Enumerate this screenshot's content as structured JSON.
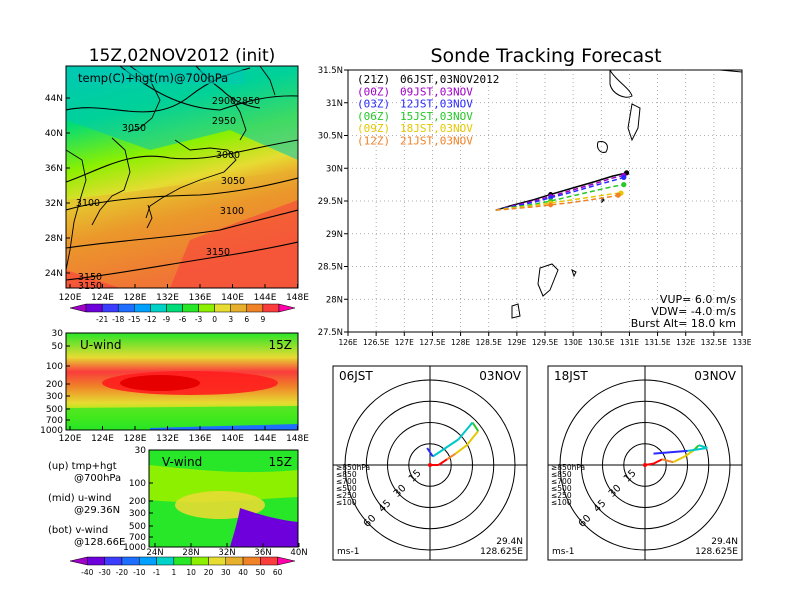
{
  "left_title": "15Z,02NOV2012 (init)",
  "map_label": "temp(C)+hgt(m)@700hPa",
  "map_lat_ticks": [
    "44N",
    "40N",
    "36N",
    "32N",
    "28N",
    "24N"
  ],
  "map_lon_ticks": [
    "120E",
    "124E",
    "128E",
    "132E",
    "136E",
    "140E",
    "144E",
    "148E"
  ],
  "contour_labels": [
    "2900",
    "2850",
    "3050",
    "2950",
    "3000",
    "3050",
    "3100",
    "3100",
    "3150",
    "3150",
    "3150"
  ],
  "temp_colorbar": {
    "labels": [
      "-21",
      "-18",
      "-15",
      "-12",
      "-9",
      "-6",
      "-3",
      "0",
      "3",
      "6",
      "9"
    ],
    "colors": [
      "#a000c8",
      "#6e00dc",
      "#3c3cff",
      "#1e6eff",
      "#00a0ff",
      "#00d2c8",
      "#00dc78",
      "#28e628",
      "#8cf000",
      "#e6dc32",
      "#e6af2d",
      "#f08228",
      "#fa3c3c",
      "#ff00aa"
    ]
  },
  "u_panel": {
    "title": "U-wind",
    "time": "15Z",
    "p_ticks": [
      "30",
      "50",
      "100",
      "200",
      "300",
      "500",
      "700",
      "1000"
    ],
    "lon_ticks": [
      "120E",
      "124E",
      "128E",
      "132E",
      "136E",
      "140E",
      "144E",
      "148E"
    ]
  },
  "v_panel": {
    "title": "V-wind",
    "time": "15Z",
    "p_ticks": [
      "30",
      "50",
      "100",
      "200",
      "300",
      "500",
      "700",
      "1000"
    ],
    "lat_ticks": [
      "24N",
      "28N",
      "32N",
      "36N",
      "40N"
    ]
  },
  "notes": {
    "up1": "(up) tmp+hgt",
    "up2": "@700hPa",
    "mid1": "(mid) u-wind",
    "mid2": "@29.36N",
    "bot1": "(bot) v-wind",
    "bot2": "@128.66E"
  },
  "wind_colorbar": {
    "labels": [
      "-40",
      "-30",
      "-20",
      "-10",
      "-1",
      "1",
      "10",
      "20",
      "30",
      "40",
      "50",
      "60"
    ],
    "colors": [
      "#a000c8",
      "#6e00dc",
      "#3c3cff",
      "#1e6eff",
      "#00a0ff",
      "#00d2c8",
      "#28e628",
      "#8cf000",
      "#e6dc32",
      "#e6af2d",
      "#f08228",
      "#fa3c3c",
      "#ff00aa"
    ]
  },
  "right_title": "Sonde Tracking Forecast",
  "tracking": {
    "lat_ticks": [
      "31.5N",
      "31N",
      "30.5N",
      "30N",
      "29.5N",
      "29N",
      "28.5N",
      "28N",
      "27.5N"
    ],
    "lon_ticks": [
      "126E",
      "126.5E",
      "127E",
      "127.5E",
      "128E",
      "128.5E",
      "129E",
      "129.5E",
      "130E",
      "130.5E",
      "131E",
      "131.5E",
      "132E",
      "132.5E",
      "133E"
    ],
    "legend": [
      {
        "code": "(21Z)",
        "time": "06JST,03NOV2012",
        "color": "#000000"
      },
      {
        "code": "(00Z)",
        "time": "09JST,03NOV",
        "color": "#a000c8"
      },
      {
        "code": "(03Z)",
        "time": "12JST,03NOV",
        "color": "#2a2aff"
      },
      {
        "code": "(06Z)",
        "time": "15JST,03NOV",
        "color": "#28c828"
      },
      {
        "code": "(09Z)",
        "time": "18JST,03NOV",
        "color": "#e6c800"
      },
      {
        "code": "(12Z)",
        "time": "21JST,03NOV",
        "color": "#f08228"
      }
    ],
    "params": [
      "VUP= 6.0 m/s",
      "VDW= -4.0 m/s",
      "Burst Alt= 18.0 km"
    ]
  },
  "chart_data": [
    {
      "type": "line",
      "title": "Sonde Tracking Forecast",
      "xlim": [
        126,
        133
      ],
      "ylim": [
        27.5,
        31.5
      ],
      "launch": {
        "lon": 128.625,
        "lat": 29.36
      },
      "series": [
        {
          "name": "(21Z) 06JST,03NOV2012",
          "lon": [
            128.625,
            128.9,
            129.3,
            129.6,
            130.0,
            130.4,
            130.7,
            130.95
          ],
          "lat": [
            29.36,
            29.43,
            29.52,
            29.6,
            29.7,
            29.8,
            29.88,
            29.93
          ]
        },
        {
          "name": "(00Z) 09JST,03NOV",
          "lon": [
            128.625,
            128.9,
            129.3,
            129.6,
            130.0,
            130.4,
            130.7,
            130.9
          ],
          "lat": [
            29.36,
            29.42,
            29.5,
            29.57,
            29.67,
            29.77,
            29.85,
            29.89
          ]
        },
        {
          "name": "(03Z) 12JST,03NOV",
          "lon": [
            128.625,
            128.9,
            129.3,
            129.6,
            130.0,
            130.4,
            130.7,
            130.9
          ],
          "lat": [
            29.36,
            29.41,
            29.48,
            29.55,
            29.64,
            29.74,
            29.81,
            29.86
          ]
        },
        {
          "name": "(06Z) 15JST,03NOV",
          "lon": [
            128.625,
            128.9,
            129.3,
            129.6,
            130.0,
            130.4,
            130.7,
            130.9
          ],
          "lat": [
            29.36,
            29.4,
            29.45,
            29.5,
            29.58,
            29.66,
            29.72,
            29.75
          ]
        },
        {
          "name": "(09Z) 18JST,03NOV",
          "lon": [
            128.625,
            128.9,
            129.3,
            129.6,
            130.0,
            130.4,
            130.7,
            130.85
          ],
          "lat": [
            29.36,
            29.39,
            29.43,
            29.47,
            29.52,
            29.57,
            29.61,
            29.62
          ]
        },
        {
          "name": "(12Z) 21JST,03NOV",
          "lon": [
            128.625,
            128.9,
            129.3,
            129.6,
            130.0,
            130.4,
            130.7,
            130.8
          ],
          "lat": [
            29.36,
            29.38,
            29.41,
            29.44,
            29.48,
            29.53,
            29.57,
            29.59
          ]
        }
      ]
    },
    {
      "type": "polar",
      "label": "06JST",
      "date": "03NOV",
      "ring_labels": [
        "15",
        "30",
        "45",
        "60"
      ],
      "unit": "ms-1",
      "location": [
        "29.4N",
        "128.625E"
      ],
      "levels": [
        {
          "name": "≥850hPa",
          "color": "#ff0000"
        },
        {
          "name": "≤850",
          "color": "#f08228"
        },
        {
          "name": "≤700",
          "color": "#e6c800"
        },
        {
          "name": "≤500",
          "color": "#28c828"
        },
        {
          "name": "≤250",
          "color": "#00c8c8"
        },
        {
          "name": "≤100",
          "color": "#2a2aff"
        }
      ],
      "hodograph": [
        [
          0,
          0
        ],
        [
          6,
          0
        ],
        [
          12,
          4
        ],
        [
          18,
          8
        ],
        [
          26,
          14
        ],
        [
          34,
          24
        ],
        [
          30,
          30
        ],
        [
          20,
          18
        ],
        [
          2,
          6
        ],
        [
          -2,
          12
        ]
      ]
    },
    {
      "type": "polar",
      "label": "18JST",
      "date": "03NOV",
      "ring_labels": [
        "15",
        "30",
        "45",
        "60"
      ],
      "unit": "ms-1",
      "location": [
        "29.4N",
        "128.625E"
      ],
      "levels": [
        {
          "name": "≥850hPa",
          "color": "#ff0000"
        },
        {
          "name": "≤850",
          "color": "#f08228"
        },
        {
          "name": "≤700",
          "color": "#e6c800"
        },
        {
          "name": "≤500",
          "color": "#28c828"
        },
        {
          "name": "≤250",
          "color": "#00c8c8"
        },
        {
          "name": "≤100",
          "color": "#2a2aff"
        }
      ],
      "hodograph": [
        [
          0,
          0
        ],
        [
          6,
          1
        ],
        [
          12,
          4
        ],
        [
          20,
          2
        ],
        [
          28,
          6
        ],
        [
          34,
          10
        ],
        [
          38,
          14
        ],
        [
          44,
          12
        ],
        [
          30,
          10
        ],
        [
          6,
          8
        ]
      ]
    }
  ]
}
